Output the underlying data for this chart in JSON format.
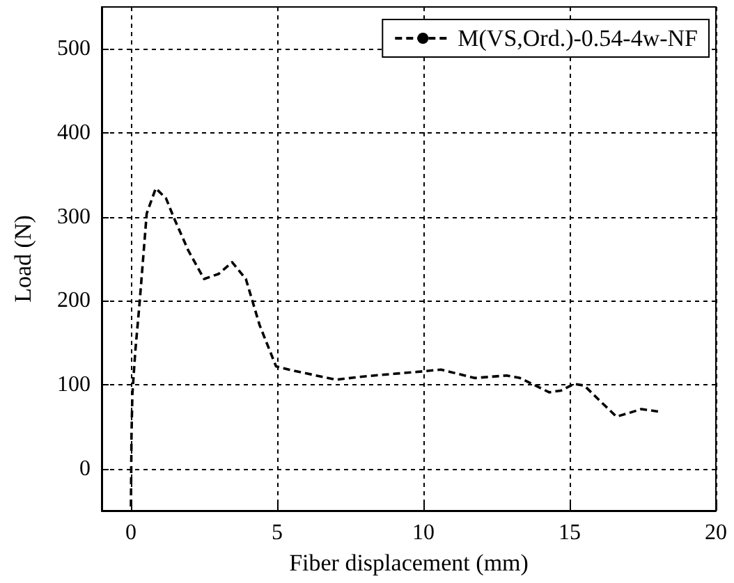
{
  "chart_data": {
    "type": "line",
    "xlabel": "Fiber displacement (mm)",
    "ylabel": "Load (N)",
    "xlim": [
      -1,
      20
    ],
    "xticks": [
      0,
      5,
      10,
      15,
      20
    ],
    "ylim": [
      -50,
      550
    ],
    "yticks": [
      0,
      100,
      200,
      300,
      400,
      500
    ],
    "grid": true,
    "legend": "top right",
    "line_style": "dashed",
    "marker": "none",
    "series": [
      {
        "name": "M(VS,Ord.)-0.54-4w-NF",
        "color": "#000000",
        "x": [
          0,
          0.02,
          0.05,
          0.15,
          0.3,
          0.54,
          0.85,
          1.2,
          1.48,
          1.96,
          2.5,
          3.0,
          3.46,
          3.93,
          4.4,
          4.96,
          5.4,
          6.2,
          7.0,
          8.0,
          9.0,
          10.0,
          10.6,
          11.75,
          12.85,
          13.3,
          14.3,
          14.7,
          15.15,
          15.5,
          16.0,
          16.6,
          17.0,
          17.45,
          18.05
        ],
        "values": [
          -45,
          40,
          89,
          140,
          199,
          304,
          334,
          322,
          298,
          260,
          226,
          232,
          246,
          226,
          171,
          122,
          118,
          112,
          106,
          110,
          113,
          116,
          118,
          108,
          111,
          108,
          91,
          93,
          101,
          99,
          82,
          62,
          66,
          71,
          68
        ]
      }
    ]
  }
}
